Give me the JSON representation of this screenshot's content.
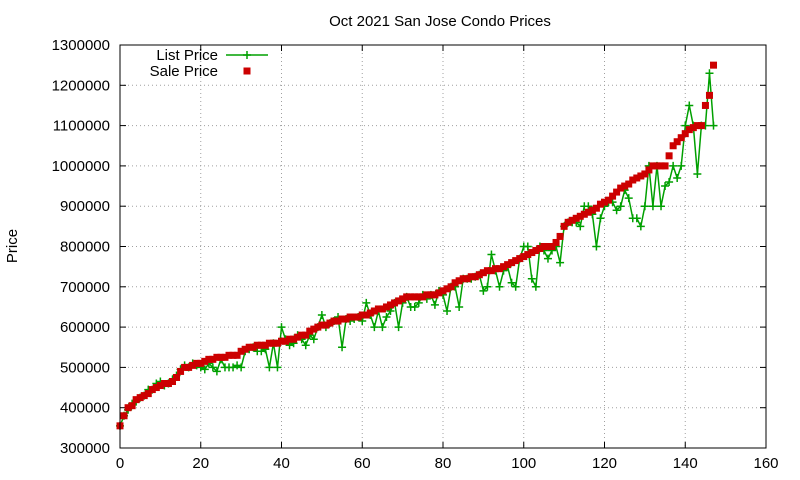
{
  "chart_data": {
    "type": "line",
    "title": "Oct 2021 San Jose Condo Prices",
    "xlabel": "",
    "ylabel": "Price",
    "xlim": [
      0,
      160
    ],
    "ylim": [
      300000,
      1300000
    ],
    "xticks": [
      0,
      20,
      40,
      60,
      80,
      100,
      120,
      140,
      160
    ],
    "yticks": [
      300000,
      400000,
      500000,
      600000,
      700000,
      800000,
      900000,
      1000000,
      1100000,
      1200000,
      1300000
    ],
    "grid": true,
    "legend_position": "top-left",
    "series": [
      {
        "name": "List Price",
        "style": "lines+plus",
        "color": "#00a000",
        "x": [
          0,
          1,
          2,
          3,
          4,
          5,
          6,
          7,
          8,
          9,
          10,
          11,
          12,
          13,
          14,
          15,
          16,
          17,
          18,
          19,
          20,
          21,
          22,
          23,
          24,
          25,
          26,
          27,
          28,
          29,
          30,
          31,
          32,
          33,
          34,
          35,
          36,
          37,
          38,
          39,
          40,
          41,
          42,
          43,
          44,
          45,
          46,
          47,
          48,
          49,
          50,
          51,
          52,
          53,
          54,
          55,
          56,
          57,
          58,
          59,
          60,
          61,
          62,
          63,
          64,
          65,
          66,
          67,
          68,
          69,
          70,
          71,
          72,
          73,
          74,
          75,
          76,
          77,
          78,
          79,
          80,
          81,
          82,
          83,
          84,
          85,
          86,
          87,
          88,
          89,
          90,
          91,
          92,
          93,
          94,
          95,
          96,
          97,
          98,
          99,
          100,
          101,
          102,
          103,
          104,
          105,
          106,
          107,
          108,
          109,
          110,
          111,
          112,
          113,
          114,
          115,
          116,
          117,
          118,
          119,
          120,
          121,
          122,
          123,
          124,
          125,
          126,
          127,
          128,
          129,
          130,
          131,
          132,
          133,
          134,
          135,
          136,
          137,
          138,
          139,
          140,
          141,
          142,
          143,
          144,
          145,
          146,
          147
        ],
        "y": [
          355000,
          380000,
          395000,
          410000,
          415000,
          425000,
          430000,
          445000,
          445000,
          460000,
          465000,
          455000,
          460000,
          470000,
          480000,
          495000,
          505000,
          500000,
          510000,
          505000,
          500000,
          495000,
          510000,
          500000,
          490000,
          520000,
          500000,
          500000,
          500000,
          505000,
          500000,
          540000,
          545000,
          550000,
          540000,
          540000,
          545000,
          500000,
          560000,
          500000,
          600000,
          570000,
          555000,
          560000,
          580000,
          570000,
          555000,
          580000,
          570000,
          600000,
          630000,
          600000,
          610000,
          615000,
          625000,
          550000,
          620000,
          615000,
          620000,
          625000,
          615000,
          660000,
          630000,
          600000,
          640000,
          600000,
          625000,
          640000,
          660000,
          600000,
          660000,
          675000,
          650000,
          650000,
          660000,
          680000,
          670000,
          680000,
          655000,
          690000,
          680000,
          640000,
          700000,
          700000,
          650000,
          720000,
          720000,
          720000,
          725000,
          730000,
          690000,
          700000,
          780000,
          740000,
          700000,
          740000,
          750000,
          710000,
          700000,
          770000,
          800000,
          800000,
          720000,
          700000,
          800000,
          790000,
          770000,
          790000,
          800000,
          760000,
          850000,
          860000,
          860000,
          860000,
          850000,
          900000,
          900000,
          880000,
          800000,
          870000,
          900000,
          910000,
          910000,
          890000,
          900000,
          940000,
          920000,
          870000,
          870000,
          850000,
          900000,
          1000000,
          900000,
          1000000,
          900000,
          950000,
          960000,
          1000000,
          970000,
          1000000,
          1100000,
          1150000,
          1100000,
          980000,
          1100000,
          1100000,
          1230000,
          1100000
        ]
      },
      {
        "name": "Sale Price",
        "style": "points-square",
        "color": "#cc0000",
        "x": [
          0,
          1,
          2,
          3,
          4,
          5,
          6,
          7,
          8,
          9,
          10,
          11,
          12,
          13,
          14,
          15,
          16,
          17,
          18,
          19,
          20,
          21,
          22,
          23,
          24,
          25,
          26,
          27,
          28,
          29,
          30,
          31,
          32,
          33,
          34,
          35,
          36,
          37,
          38,
          39,
          40,
          41,
          42,
          43,
          44,
          45,
          46,
          47,
          48,
          49,
          50,
          51,
          52,
          53,
          54,
          55,
          56,
          57,
          58,
          59,
          60,
          61,
          62,
          63,
          64,
          65,
          66,
          67,
          68,
          69,
          70,
          71,
          72,
          73,
          74,
          75,
          76,
          77,
          78,
          79,
          80,
          81,
          82,
          83,
          84,
          85,
          86,
          87,
          88,
          89,
          90,
          91,
          92,
          93,
          94,
          95,
          96,
          97,
          98,
          99,
          100,
          101,
          102,
          103,
          104,
          105,
          106,
          107,
          108,
          109,
          110,
          111,
          112,
          113,
          114,
          115,
          116,
          117,
          118,
          119,
          120,
          121,
          122,
          123,
          124,
          125,
          126,
          127,
          128,
          129,
          130,
          131,
          132,
          133,
          134,
          135,
          136,
          137,
          138,
          139,
          140,
          141,
          142,
          143,
          144,
          145,
          146,
          147
        ],
        "y": [
          355000,
          380000,
          400000,
          405000,
          420000,
          425000,
          430000,
          435000,
          445000,
          450000,
          455000,
          460000,
          460000,
          465000,
          475000,
          490000,
          500000,
          500000,
          505000,
          510000,
          510000,
          515000,
          520000,
          520000,
          525000,
          525000,
          525000,
          530000,
          530000,
          530000,
          540000,
          545000,
          550000,
          550000,
          555000,
          555000,
          555000,
          560000,
          560000,
          560000,
          565000,
          565000,
          570000,
          570000,
          575000,
          580000,
          580000,
          590000,
          595000,
          600000,
          605000,
          605000,
          610000,
          615000,
          615000,
          620000,
          620000,
          625000,
          625000,
          625000,
          630000,
          630000,
          635000,
          640000,
          645000,
          645000,
          650000,
          655000,
          660000,
          665000,
          670000,
          675000,
          675000,
          675000,
          675000,
          675000,
          680000,
          680000,
          680000,
          685000,
          690000,
          695000,
          700000,
          710000,
          715000,
          720000,
          720000,
          725000,
          725000,
          730000,
          735000,
          740000,
          740000,
          745000,
          745000,
          750000,
          755000,
          760000,
          765000,
          770000,
          775000,
          780000,
          785000,
          790000,
          795000,
          800000,
          800000,
          800000,
          810000,
          825000,
          850000,
          860000,
          865000,
          870000,
          875000,
          880000,
          885000,
          890000,
          895000,
          905000,
          910000,
          915000,
          925000,
          935000,
          945000,
          950000,
          955000,
          965000,
          970000,
          975000,
          980000,
          990000,
          1000000,
          1000000,
          1000000,
          1000000,
          1025000,
          1050000,
          1060000,
          1070000,
          1080000,
          1090000,
          1095000,
          1100000,
          1100000,
          1150000,
          1175000,
          1250000
        ]
      }
    ]
  }
}
